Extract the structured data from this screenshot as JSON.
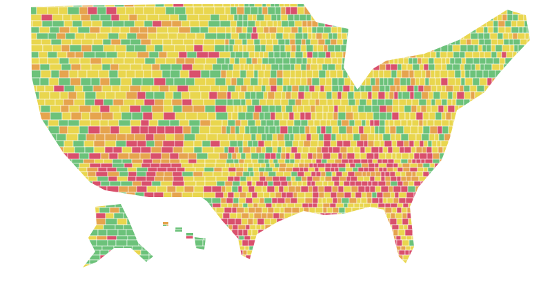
{
  "map": {
    "colors": [
      "#6cc27a",
      "#e9d64e",
      "#e6a44e",
      "#d9506c"
    ]
  }
}
